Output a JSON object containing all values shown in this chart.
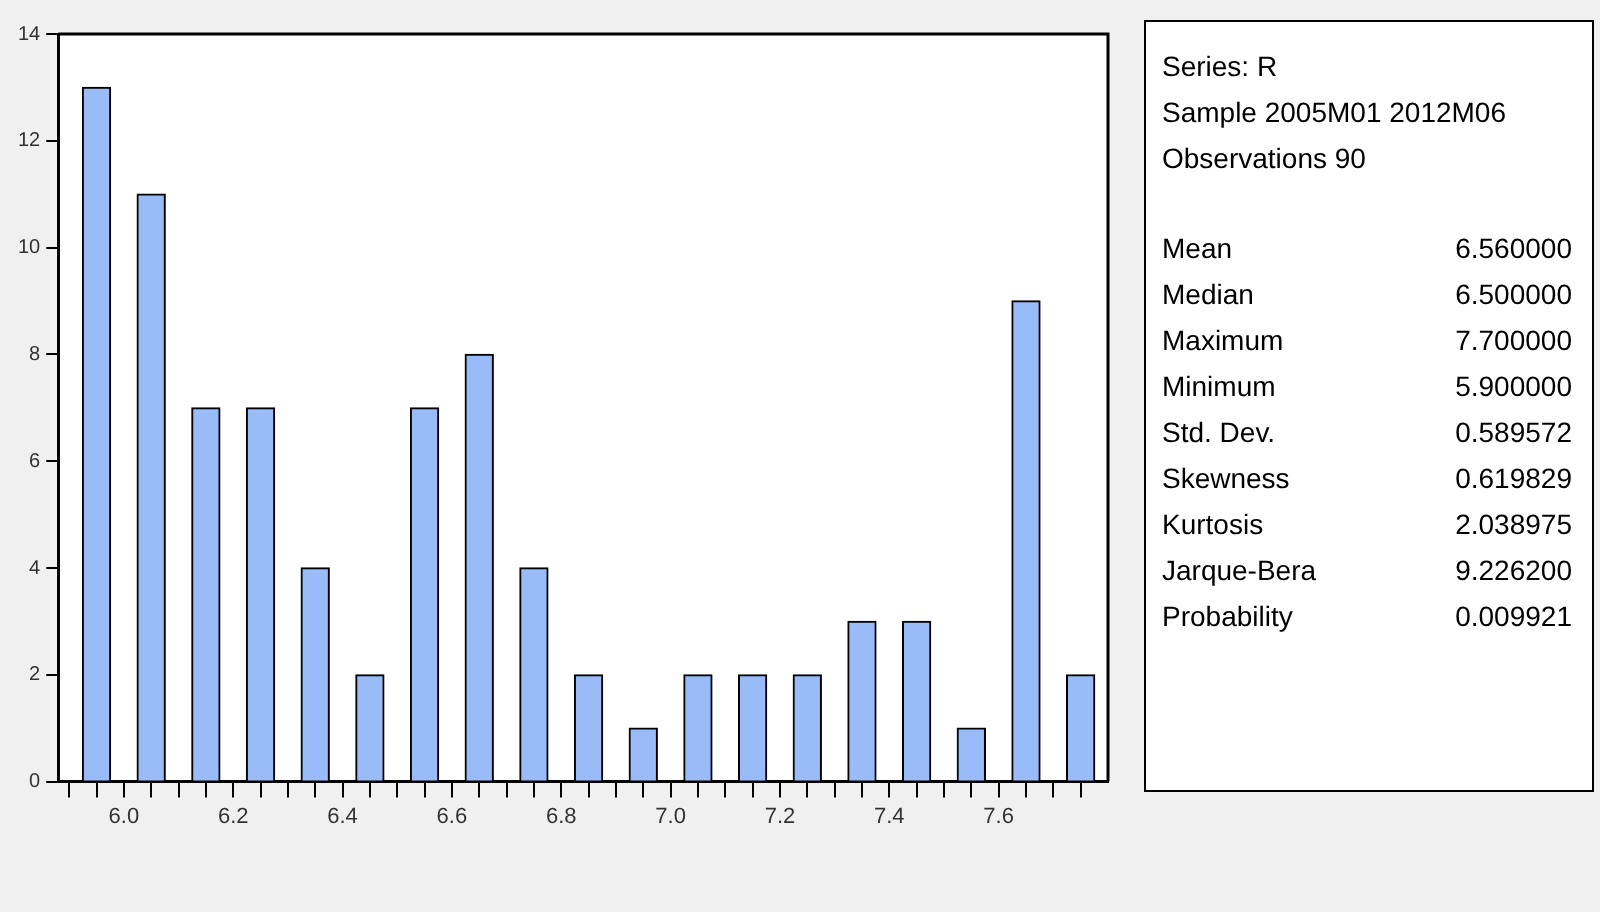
{
  "chart_data": [
    {
      "type": "histogram",
      "bins": [
        5.9,
        6.0,
        6.1,
        6.2,
        6.3,
        6.4,
        6.5,
        6.6,
        6.7,
        6.8,
        6.9,
        7.0,
        7.1,
        7.2,
        7.3,
        7.4,
        7.5,
        7.6,
        7.7,
        7.8
      ],
      "values": [
        13,
        11,
        7,
        7,
        4,
        2,
        7,
        8,
        4,
        2,
        1,
        2,
        2,
        2,
        3,
        3,
        1,
        9,
        2
      ],
      "color": "#99bbf8",
      "xlim": [
        5.88,
        7.8
      ],
      "xticks": [
        {
          "value": 5.9,
          "label": null
        },
        {
          "value": 5.95,
          "label": null
        },
        {
          "value": 6.0,
          "label": "6.0"
        },
        {
          "value": 6.05,
          "label": null
        },
        {
          "value": 6.1,
          "label": null
        },
        {
          "value": 6.15,
          "label": null
        },
        {
          "value": 6.2,
          "label": "6.2"
        },
        {
          "value": 6.25,
          "label": null
        },
        {
          "value": 6.3,
          "label": null
        },
        {
          "value": 6.35,
          "label": null
        },
        {
          "value": 6.4,
          "label": "6.4"
        },
        {
          "value": 6.45,
          "label": null
        },
        {
          "value": 6.5,
          "label": null
        },
        {
          "value": 6.55,
          "label": null
        },
        {
          "value": 6.6,
          "label": "6.6"
        },
        {
          "value": 6.65,
          "label": null
        },
        {
          "value": 6.7,
          "label": null
        },
        {
          "value": 6.75,
          "label": null
        },
        {
          "value": 6.8,
          "label": "6.8"
        },
        {
          "value": 6.85,
          "label": null
        },
        {
          "value": 6.9,
          "label": null
        },
        {
          "value": 6.95,
          "label": null
        },
        {
          "value": 7.0,
          "label": "7.0"
        },
        {
          "value": 7.05,
          "label": null
        },
        {
          "value": 7.1,
          "label": null
        },
        {
          "value": 7.15,
          "label": null
        },
        {
          "value": 7.2,
          "label": "7.2"
        },
        {
          "value": 7.25,
          "label": null
        },
        {
          "value": 7.3,
          "label": null
        },
        {
          "value": 7.35,
          "label": null
        },
        {
          "value": 7.4,
          "label": "7.4"
        },
        {
          "value": 7.45,
          "label": null
        },
        {
          "value": 7.5,
          "label": null
        },
        {
          "value": 7.55,
          "label": null
        },
        {
          "value": 7.6,
          "label": "7.6"
        },
        {
          "value": 7.65,
          "label": null
        },
        {
          "value": 7.7,
          "label": null
        },
        {
          "value": 7.75,
          "label": null
        }
      ],
      "ylim": [
        0,
        14
      ],
      "yticks": [
        0,
        2,
        4,
        6,
        8,
        10,
        12,
        14
      ],
      "grid": false,
      "legend": false
    },
    {
      "type": "other",
      "annotations": [
        "Series: R",
        "Sample 2005M01 2012M06",
        "Observations 90",
        "Mean\t6.560000",
        "Median\t6.500000",
        "Maximum\t7.700000",
        "Minimum\t5.900000",
        "Std. Dev.\t0.589572",
        "Skewness\t0.619829",
        "Kurtosis\t2.038975",
        "Jarque-Bera\t9.226200",
        "Probability\t0.009921"
      ]
    }
  ]
}
